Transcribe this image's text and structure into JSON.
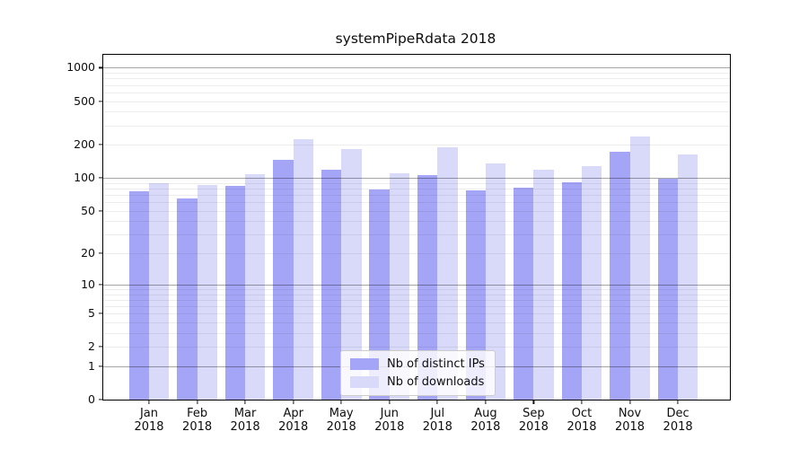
{
  "chart_data": {
    "type": "bar",
    "title": "systemPipeRdata 2018",
    "categories": [
      "Jan 2018",
      "Feb 2018",
      "Mar 2018",
      "Apr 2018",
      "May 2018",
      "Jun 2018",
      "Jul 2018",
      "Aug 2018",
      "Sep 2018",
      "Oct 2018",
      "Nov 2018",
      "Dec 2018"
    ],
    "month_labels": [
      "Jan",
      "Feb",
      "Mar",
      "Apr",
      "May",
      "Jun",
      "Jul",
      "Aug",
      "Sep",
      "Oct",
      "Nov",
      "Dec"
    ],
    "year_label": "2018",
    "series": [
      {
        "name": "Nb of distinct IPs",
        "color": "#a5a5f8",
        "values": [
          75,
          65,
          84,
          145,
          120,
          78,
          107,
          77,
          82,
          91,
          173,
          98
        ]
      },
      {
        "name": "Nb of downloads",
        "color": "#d9d9fa",
        "values": [
          90,
          86,
          108,
          226,
          185,
          110,
          190,
          135,
          118,
          128,
          238,
          163
        ]
      }
    ],
    "yscale": "log1p",
    "yticks": [
      0,
      1,
      2,
      5,
      10,
      20,
      50,
      100,
      200,
      500,
      1000
    ],
    "major_gridlines": [
      1,
      10,
      100,
      1000
    ],
    "ylim": [
      0,
      1310
    ],
    "grid": true,
    "grid_minor_color": "#ededed",
    "grid_major_color": "#a6a6a6",
    "legend_position": "inside-bottom-center",
    "xlabel": "",
    "ylabel": ""
  }
}
